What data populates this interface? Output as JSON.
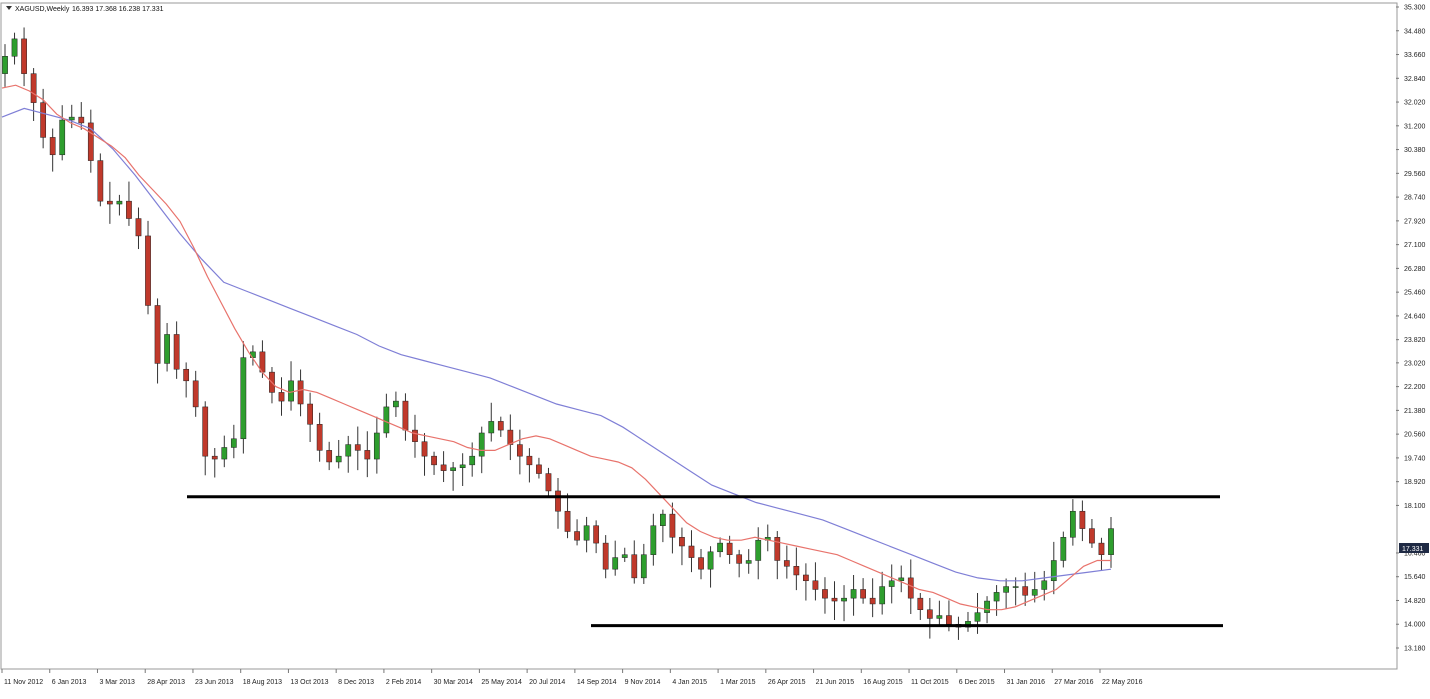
{
  "header": {
    "title": "XAGUSD,Weekly",
    "ohlc": "16.393 17.368 16.238 17.331"
  },
  "price_badge": "17.331",
  "chart_data": {
    "type": "candlestick",
    "symbol": "XAGUSD",
    "timeframe": "Weekly",
    "ylim": [
      13.18,
      35.3
    ],
    "yticks": [
      "35.300",
      "34.480",
      "33.660",
      "32.840",
      "32.020",
      "31.200",
      "30.380",
      "29.560",
      "28.740",
      "27.920",
      "27.100",
      "26.280",
      "25.460",
      "24.640",
      "23.820",
      "23.020",
      "22.200",
      "21.380",
      "20.560",
      "19.740",
      "18.920",
      "18.100",
      "17.331",
      "16.460",
      "15.640",
      "14.820",
      "14.000",
      "13.180"
    ],
    "xticks": [
      "11 Nov 2012",
      "6 Jan 2013",
      "3 Mar 2013",
      "28 Apr 2013",
      "23 Jun 2013",
      "18 Aug 2013",
      "13 Oct 2013",
      "8 Dec 2013",
      "2 Feb 2014",
      "30 Mar 2014",
      "25 May 2014",
      "20 Jul 2014",
      "14 Sep 2014",
      "9 Nov 2014",
      "4 Jan 2015",
      "1 Mar 2015",
      "26 Apr 2015",
      "21 Jun 2015",
      "16 Aug 2015",
      "11 Oct 2015",
      "6 Dec 2015",
      "31 Jan 2016",
      "27 Mar 2016",
      "22 May 2016"
    ],
    "close_path": [
      33.6,
      34.2,
      33.0,
      32.0,
      30.8,
      30.2,
      31.4,
      31.5,
      31.3,
      30.0,
      28.6,
      28.5,
      28.6,
      28.0,
      27.4,
      25.0,
      23.0,
      24.0,
      22.8,
      22.4,
      21.5,
      19.8,
      19.7,
      20.1,
      20.4,
      23.2,
      23.4,
      22.7,
      22.0,
      21.7,
      22.4,
      21.6,
      20.9,
      20.0,
      19.6,
      19.8,
      20.2,
      20.0,
      19.7,
      20.6,
      21.5,
      21.7,
      20.7,
      20.3,
      19.8,
      19.5,
      19.3,
      19.4,
      19.5,
      19.8,
      20.6,
      21.0,
      20.7,
      20.2,
      19.8,
      19.5,
      19.2,
      18.6,
      17.9,
      17.2,
      16.9,
      17.4,
      16.8,
      15.9,
      16.3,
      16.4,
      15.6,
      16.4,
      17.4,
      17.8,
      17.0,
      16.7,
      16.3,
      15.9,
      16.5,
      16.8,
      16.4,
      16.1,
      16.2,
      16.9,
      17.0,
      16.2,
      16.0,
      15.7,
      15.5,
      15.2,
      14.9,
      14.8,
      14.9,
      15.2,
      14.9,
      14.7,
      15.3,
      15.5,
      15.6,
      14.9,
      14.5,
      14.2,
      14.3,
      14.0,
      13.9,
      14.1,
      14.4,
      14.8,
      15.1,
      15.3,
      15.3,
      15.0,
      15.2,
      15.5,
      16.2,
      17.0,
      17.9,
      17.3,
      16.8,
      16.4,
      17.3
    ],
    "ema_fast": [
      32.5,
      32.6,
      32.4,
      32.1,
      31.6,
      31.3,
      31.1,
      30.8,
      30.5,
      30.1,
      29.5,
      29.0,
      28.5,
      27.9,
      27.0,
      26.0,
      25.1,
      24.2,
      23.4,
      22.7,
      22.2,
      22.0,
      22.1,
      22.0,
      21.8,
      21.6,
      21.4,
      21.2,
      21.0,
      20.8,
      20.6,
      20.5,
      20.4,
      20.3,
      20.1,
      20.0,
      20.0,
      20.2,
      20.4,
      20.5,
      20.4,
      20.2,
      20.0,
      19.8,
      19.7,
      19.6,
      19.4,
      19.0,
      18.5,
      18.0,
      17.5,
      17.2,
      17.0,
      16.9,
      16.9,
      17.0,
      16.9,
      16.8,
      16.7,
      16.6,
      16.5,
      16.4,
      16.2,
      16.0,
      15.8,
      15.6,
      15.4,
      15.2,
      15.1,
      14.9,
      14.7,
      14.6,
      14.5,
      14.5,
      14.6,
      14.8,
      15.0,
      15.2,
      15.6,
      16.0,
      16.2,
      16.2
    ],
    "ema_slow": [
      31.5,
      31.8,
      31.6,
      31.4,
      31.1,
      30.4,
      29.5,
      28.5,
      27.5,
      26.6,
      25.8,
      25.5,
      25.2,
      24.9,
      24.6,
      24.3,
      24.0,
      23.6,
      23.3,
      23.1,
      22.9,
      22.7,
      22.5,
      22.2,
      21.9,
      21.6,
      21.4,
      21.2,
      20.8,
      20.3,
      19.8,
      19.3,
      18.8,
      18.5,
      18.2,
      18.0,
      17.8,
      17.6,
      17.3,
      17.0,
      16.7,
      16.4,
      16.1,
      15.8,
      15.6,
      15.5,
      15.5,
      15.6,
      15.7,
      15.8,
      15.9
    ],
    "support_lines": [
      {
        "value": 18.4
      },
      {
        "value": 13.95
      }
    ],
    "colors": {
      "up": "#2e9e2e",
      "down": "#c0392b",
      "ema_fast": "#e8736c",
      "ema_slow": "#7f7fd6",
      "support": "#000000",
      "badge_bg": "#1f2a44"
    }
  }
}
